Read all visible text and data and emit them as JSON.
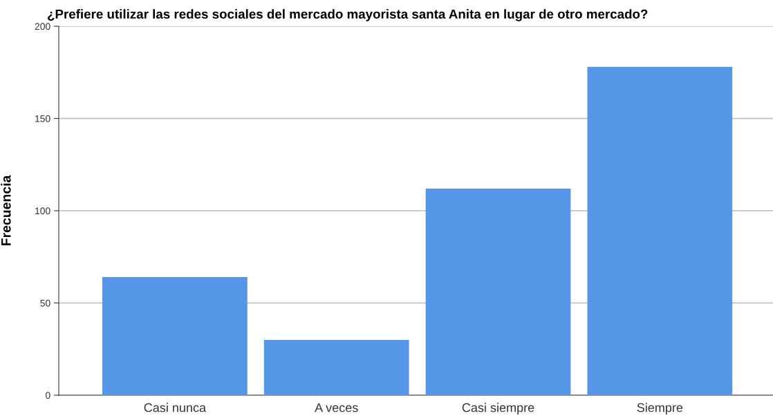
{
  "chart_data": {
    "type": "bar",
    "title": "¿Prefiere utilizar las redes sociales del mercado mayorista santa Anita en lugar de otro mercado?",
    "ylabel": "Frecuencia",
    "categories": [
      "Casi nunca",
      "A veces",
      "Casi siempre",
      "Siempre"
    ],
    "values": [
      64,
      30,
      112,
      178
    ],
    "color": "#5596e6",
    "ylim": [
      0,
      200
    ],
    "yticks": [
      0,
      50,
      100,
      150,
      200
    ],
    "grid": "y"
  }
}
